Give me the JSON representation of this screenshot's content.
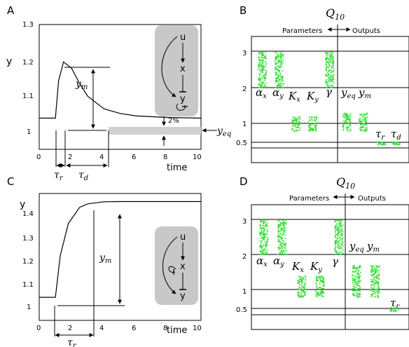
{
  "panels": {
    "A": {
      "letter": "A",
      "ylabel": "y",
      "xlabel": "time",
      "yticks": [
        "1.3",
        "1.2",
        "1.1",
        "1"
      ],
      "xticks": [
        "0",
        "2",
        "4",
        "6",
        "8",
        "10"
      ],
      "annotations": {
        "ym": "y",
        "ym_sub": "m",
        "yeq": "y",
        "yeq_sub": "eq",
        "tau_r": "τ",
        "tau_r_sub": "r",
        "tau_d": "τ",
        "tau_d_sub": "d",
        "two_percent": "2%"
      },
      "network": {
        "nodes": [
          "u",
          "x",
          "y"
        ]
      }
    },
    "B": {
      "letter": "B",
      "title": "Q",
      "title_sub": "10",
      "header_left": "Parameters",
      "header_right": "Outputs",
      "yticks": [
        "3",
        "2",
        "1",
        "0.5"
      ],
      "labels": [
        {
          "main": "α",
          "sub": "x"
        },
        {
          "main": "α",
          "sub": "y"
        },
        {
          "main": "K",
          "sub": "x"
        },
        {
          "main": "K",
          "sub": "y"
        },
        {
          "main": "γ",
          "sub": ""
        },
        {
          "main": "y",
          "sub": "eq"
        },
        {
          "main": "y",
          "sub": "m"
        },
        {
          "main": "τ",
          "sub": "r"
        },
        {
          "main": "τ",
          "sub": "d"
        }
      ]
    },
    "C": {
      "letter": "C",
      "ylabel": "y",
      "xlabel": "time",
      "yticks": [
        "1.4",
        "1.3",
        "1.2",
        "1.1",
        "1"
      ],
      "xticks": [
        "0",
        "2",
        "4",
        "6",
        "8",
        "10"
      ],
      "annotations": {
        "ym": "y",
        "ym_sub": "m",
        "tau_r": "τ",
        "tau_r_sub": "r"
      },
      "network": {
        "nodes": [
          "u",
          "x",
          "y"
        ]
      }
    },
    "D": {
      "letter": "D",
      "title": "Q",
      "title_sub": "10",
      "header_left": "Parameters",
      "header_right": "Outputs",
      "yticks": [
        "3",
        "2",
        "1",
        "0.5"
      ],
      "labels": [
        {
          "main": "α",
          "sub": "x"
        },
        {
          "main": "α",
          "sub": "y"
        },
        {
          "main": "K",
          "sub": "x"
        },
        {
          "main": "K",
          "sub": "y"
        },
        {
          "main": "γ",
          "sub": ""
        },
        {
          "main": "y",
          "sub": "eq"
        },
        {
          "main": "y",
          "sub": "m"
        },
        {
          "main": "τ",
          "sub": "r"
        }
      ]
    }
  },
  "chart_data": [
    {
      "panel": "A",
      "type": "line",
      "xlabel": "time",
      "ylabel": "y",
      "xlim": [
        0,
        10
      ],
      "ylim": [
        0.9,
        1.3
      ],
      "series": [
        {
          "x": [
            0,
            1,
            1.2,
            1.5,
            2,
            2.5,
            3,
            4,
            5,
            6,
            8,
            10
          ],
          "y": [
            1,
            1,
            1.12,
            1.18,
            1.16,
            1.11,
            1.07,
            1.03,
            1.015,
            1.007,
            1.002,
            1.0
          ]
        }
      ]
    },
    {
      "panel": "B",
      "type": "scatter",
      "title": "Q10",
      "categories": [
        "αx",
        "αy",
        "Kx",
        "Ky",
        "γ",
        "yeq",
        "ym",
        "τr",
        "τd"
      ],
      "ranges": [
        [
          2.0,
          3.0
        ],
        [
          2.0,
          3.0
        ],
        [
          0.8,
          1.2
        ],
        [
          0.8,
          1.2
        ],
        [
          2.0,
          3.0
        ],
        [
          0.8,
          1.3
        ],
        [
          0.8,
          1.3
        ],
        [
          0.46,
          0.53
        ],
        [
          0.46,
          0.53
        ]
      ]
    },
    {
      "panel": "C",
      "type": "line",
      "xlabel": "time",
      "ylabel": "y",
      "xlim": [
        0,
        10
      ],
      "ylim": [
        0.9,
        1.45
      ],
      "series": [
        {
          "x": [
            0,
            1,
            1.3,
            1.8,
            2.5,
            3,
            4,
            5,
            6,
            8,
            10
          ],
          "y": [
            1,
            1,
            1.18,
            1.32,
            1.39,
            1.405,
            1.414,
            1.415,
            1.415,
            1.415,
            1.415
          ]
        }
      ]
    },
    {
      "panel": "D",
      "type": "scatter",
      "title": "Q10",
      "categories": [
        "αx",
        "αy",
        "Kx",
        "Ky",
        "γ",
        "yeq",
        "ym",
        "τr"
      ],
      "ranges": [
        [
          2.0,
          3.0
        ],
        [
          2.0,
          3.0
        ],
        [
          0.8,
          1.4
        ],
        [
          0.8,
          1.4
        ],
        [
          2.0,
          3.0
        ],
        [
          0.8,
          1.7
        ],
        [
          0.8,
          1.7
        ],
        [
          0.46,
          0.54
        ]
      ]
    }
  ]
}
